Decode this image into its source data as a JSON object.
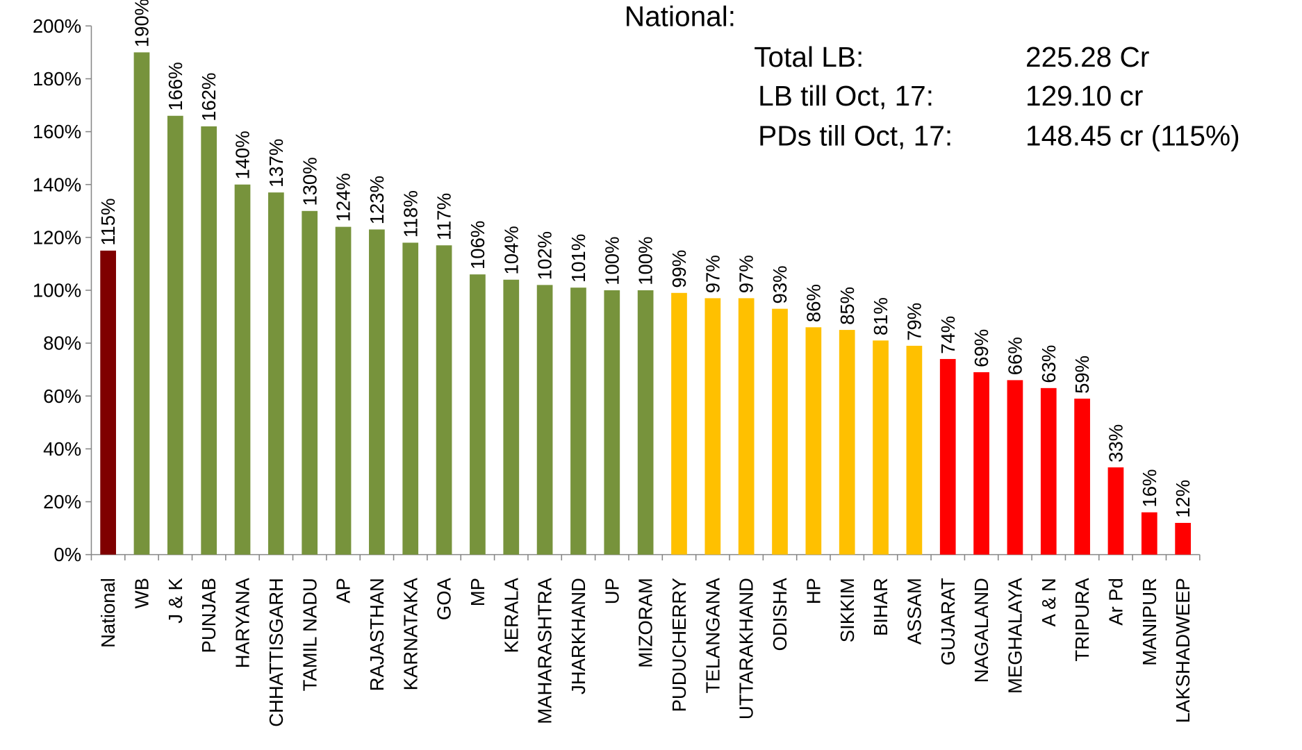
{
  "chart_data": {
    "type": "bar",
    "categories": [
      "National",
      "WB",
      "J & K",
      "PUNJAB",
      "HARYANA",
      "CHHATTISGARH",
      "TAMIL NADU",
      "AP",
      "RAJASTHAN",
      "KARNATAKA",
      "GOA",
      "MP",
      "KERALA",
      "MAHARASHTRA",
      "JHARKHAND",
      "UP",
      "MIZORAM",
      "PUDUCHERRY",
      "TELANGANA",
      "UTTARAKHAND",
      "ODISHA",
      "HP",
      "SIKKIM",
      "BIHAR",
      "ASSAM",
      "GUJARAT",
      "NAGALAND",
      "MEGHALAYA",
      "A & N",
      "TRIPURA",
      "Ar Pd",
      "MANIPUR",
      "LAKSHADWEEP"
    ],
    "values": [
      115,
      190,
      166,
      162,
      140,
      137,
      130,
      124,
      123,
      118,
      117,
      106,
      104,
      102,
      101,
      100,
      100,
      99,
      97,
      97,
      93,
      86,
      85,
      81,
      79,
      74,
      69,
      66,
      63,
      59,
      33,
      16,
      12
    ],
    "value_labels": [
      "115%",
      "190%",
      "166%",
      "162%",
      "140%",
      "137%",
      "130%",
      "124%",
      "123%",
      "118%",
      "117%",
      "106%",
      "104%",
      "102%",
      "101%",
      "100%",
      "100%",
      "99%",
      "97%",
      "97%",
      "93%",
      "86%",
      "85%",
      "81%",
      "79%",
      "74%",
      "69%",
      "66%",
      "63%",
      "59%",
      "33%",
      "16%",
      "12%"
    ],
    "colors": [
      "#7f0000",
      "#77933c",
      "#77933c",
      "#77933c",
      "#77933c",
      "#77933c",
      "#77933c",
      "#77933c",
      "#77933c",
      "#77933c",
      "#77933c",
      "#77933c",
      "#77933c",
      "#77933c",
      "#77933c",
      "#77933c",
      "#77933c",
      "#ffc000",
      "#ffc000",
      "#ffc000",
      "#ffc000",
      "#ffc000",
      "#ffc000",
      "#ffc000",
      "#ffc000",
      "#ff0000",
      "#ff0000",
      "#ff0000",
      "#ff0000",
      "#ff0000",
      "#ff0000",
      "#ff0000",
      "#ff0000"
    ],
    "ylim": [
      0,
      200
    ],
    "yticks": [
      {
        "value": 0,
        "label": "0%"
      },
      {
        "value": 20,
        "label": "20%"
      },
      {
        "value": 40,
        "label": "40%"
      },
      {
        "value": 60,
        "label": "60%"
      },
      {
        "value": 80,
        "label": "80%"
      },
      {
        "value": 100,
        "label": "100%"
      },
      {
        "value": 120,
        "label": "120%"
      },
      {
        "value": 140,
        "label": "140%"
      },
      {
        "value": 160,
        "label": "160%"
      },
      {
        "value": 180,
        "label": "180%"
      },
      {
        "value": 200,
        "label": "200%"
      }
    ],
    "grid": false,
    "annotations": [
      "National:",
      "Total LB:",
      "225.28 Cr",
      "LB till Oct, 17:",
      "129.10 cr",
      "PDs till Oct, 17:",
      "148.45 cr (115%)"
    ]
  }
}
